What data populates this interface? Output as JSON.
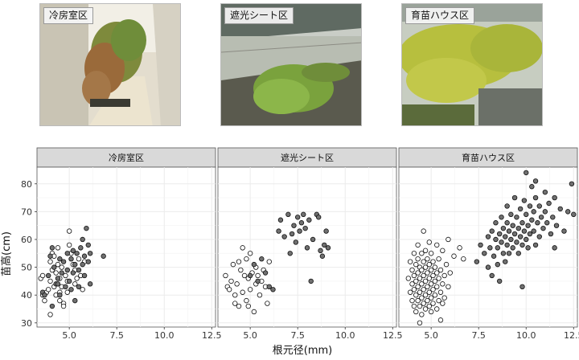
{
  "photos": [
    {
      "label": "冷房室区"
    },
    {
      "label": "遮光シート区"
    },
    {
      "label": "育苗ハウス区"
    }
  ],
  "colors": {
    "strip_bg": "#d9d9d9",
    "strip_border": "#555555",
    "panel_bg": "#ffffff",
    "grid": "#ebebeb",
    "open_point_fill": "#ffffff",
    "filled_point_fill": "#707070",
    "point_stroke": "#111111"
  },
  "chart_data": {
    "type": "scatter",
    "title": "",
    "xlabel": "根元径(mm)",
    "ylabel": "苗高(cm)",
    "xlim": [
      3.3,
      12.7
    ],
    "ylim": [
      28.5,
      86
    ],
    "xticks": [
      "5.0",
      "7.5",
      "10.0",
      "12.5"
    ],
    "xtick_values": [
      5.0,
      7.5,
      10.0,
      12.5
    ],
    "yticks": [
      "30",
      "40",
      "50",
      "60",
      "70",
      "80"
    ],
    "ytick_values": [
      30,
      40,
      50,
      60,
      70,
      80
    ],
    "grid": true,
    "panels": [
      {
        "title": "冷房室区",
        "open": [
          [
            3.5,
            46
          ],
          [
            3.6,
            47
          ],
          [
            3.6,
            40
          ],
          [
            3.7,
            38
          ],
          [
            3.8,
            41
          ],
          [
            3.9,
            42
          ],
          [
            4.0,
            45
          ],
          [
            4.0,
            52
          ],
          [
            4.1,
            49
          ],
          [
            4.1,
            55
          ],
          [
            4.2,
            54
          ],
          [
            4.2,
            43
          ],
          [
            4.3,
            48
          ],
          [
            4.3,
            40
          ],
          [
            4.4,
            51
          ],
          [
            4.4,
            57
          ],
          [
            4.5,
            46
          ],
          [
            4.5,
            38
          ],
          [
            4.6,
            50
          ],
          [
            4.6,
            43
          ],
          [
            4.7,
            37
          ],
          [
            4.7,
            36
          ],
          [
            4.8,
            47
          ],
          [
            4.9,
            45
          ],
          [
            4.9,
            41
          ],
          [
            5.0,
            63
          ],
          [
            5.0,
            58
          ],
          [
            5.1,
            55
          ],
          [
            5.2,
            51
          ],
          [
            5.3,
            44
          ],
          [
            5.3,
            49
          ],
          [
            5.4,
            46
          ],
          [
            5.5,
            53
          ],
          [
            5.6,
            47
          ],
          [
            5.7,
            42
          ],
          [
            4.0,
            33
          ],
          [
            4.5,
            41
          ],
          [
            5.8,
            52
          ]
        ],
        "filled": [
          [
            3.6,
            41
          ],
          [
            3.7,
            40
          ],
          [
            3.9,
            47
          ],
          [
            4.0,
            54
          ],
          [
            4.1,
            57
          ],
          [
            4.1,
            36
          ],
          [
            4.2,
            50
          ],
          [
            4.3,
            44
          ],
          [
            4.4,
            46
          ],
          [
            4.5,
            53
          ],
          [
            4.5,
            40
          ],
          [
            4.6,
            48
          ],
          [
            4.7,
            52
          ],
          [
            4.8,
            43
          ],
          [
            4.9,
            55
          ],
          [
            4.9,
            49
          ],
          [
            5.0,
            45
          ],
          [
            5.1,
            53
          ],
          [
            5.1,
            42
          ],
          [
            5.2,
            56
          ],
          [
            5.2,
            48
          ],
          [
            5.3,
            51
          ],
          [
            5.4,
            55
          ],
          [
            5.5,
            49
          ],
          [
            5.5,
            43
          ],
          [
            5.6,
            57
          ],
          [
            5.7,
            51
          ],
          [
            5.8,
            54
          ],
          [
            5.8,
            47
          ],
          [
            5.9,
            64
          ],
          [
            6.0,
            58
          ],
          [
            6.0,
            52
          ],
          [
            6.1,
            44
          ],
          [
            6.1,
            55
          ],
          [
            6.8,
            54
          ],
          [
            5.3,
            38
          ],
          [
            4.4,
            44
          ],
          [
            5.7,
            60
          ]
        ]
      },
      {
        "title": "遮光シート区",
        "open": [
          [
            3.7,
            47
          ],
          [
            3.8,
            43
          ],
          [
            3.9,
            42
          ],
          [
            4.0,
            45
          ],
          [
            4.1,
            51
          ],
          [
            4.2,
            37
          ],
          [
            4.3,
            44
          ],
          [
            4.4,
            52
          ],
          [
            4.4,
            36
          ],
          [
            4.5,
            49
          ],
          [
            4.6,
            57
          ],
          [
            4.6,
            41
          ],
          [
            4.7,
            47
          ],
          [
            4.8,
            53
          ],
          [
            4.8,
            38
          ],
          [
            4.9,
            46
          ],
          [
            5.0,
            55
          ],
          [
            5.0,
            42
          ],
          [
            5.1,
            48
          ],
          [
            5.2,
            34
          ],
          [
            5.3,
            50
          ],
          [
            5.3,
            44
          ],
          [
            5.4,
            47
          ],
          [
            5.5,
            40
          ],
          [
            5.6,
            45
          ],
          [
            5.7,
            49
          ],
          [
            5.8,
            43
          ],
          [
            5.9,
            37
          ],
          [
            6.0,
            52
          ],
          [
            4.2,
            40
          ],
          [
            4.9,
            36
          ]
        ],
        "filled": [
          [
            5.0,
            47
          ],
          [
            5.2,
            51
          ],
          [
            5.4,
            45
          ],
          [
            5.6,
            53
          ],
          [
            5.8,
            48
          ],
          [
            6.0,
            43
          ],
          [
            6.2,
            42
          ],
          [
            6.5,
            63
          ],
          [
            6.6,
            67
          ],
          [
            6.8,
            61
          ],
          [
            7.0,
            69
          ],
          [
            7.1,
            55
          ],
          [
            7.2,
            62
          ],
          [
            7.3,
            65
          ],
          [
            7.4,
            59
          ],
          [
            7.5,
            68
          ],
          [
            7.6,
            63
          ],
          [
            7.7,
            66
          ],
          [
            7.8,
            69
          ],
          [
            7.9,
            64
          ],
          [
            8.0,
            57
          ],
          [
            8.1,
            67
          ],
          [
            8.2,
            45
          ],
          [
            8.3,
            60
          ],
          [
            8.5,
            69
          ],
          [
            8.6,
            68
          ],
          [
            8.7,
            56
          ],
          [
            8.8,
            54
          ],
          [
            8.9,
            58
          ],
          [
            9.0,
            63
          ],
          [
            9.1,
            57
          ]
        ]
      },
      {
        "title": "育苗ハウス区",
        "open": [
          [
            3.8,
            46
          ],
          [
            3.9,
            41
          ],
          [
            3.9,
            52
          ],
          [
            4.0,
            38
          ],
          [
            4.0,
            44
          ],
          [
            4.0,
            49
          ],
          [
            4.1,
            36
          ],
          [
            4.1,
            42
          ],
          [
            4.1,
            47
          ],
          [
            4.1,
            55
          ],
          [
            4.2,
            34
          ],
          [
            4.2,
            40
          ],
          [
            4.2,
            45
          ],
          [
            4.2,
            51
          ],
          [
            4.3,
            38
          ],
          [
            4.3,
            43
          ],
          [
            4.3,
            48
          ],
          [
            4.3,
            53
          ],
          [
            4.3,
            58
          ],
          [
            4.4,
            36
          ],
          [
            4.4,
            41
          ],
          [
            4.4,
            46
          ],
          [
            4.4,
            50
          ],
          [
            4.5,
            33
          ],
          [
            4.5,
            39
          ],
          [
            4.5,
            44
          ],
          [
            4.5,
            49
          ],
          [
            4.5,
            55
          ],
          [
            4.6,
            37
          ],
          [
            4.6,
            42
          ],
          [
            4.6,
            47
          ],
          [
            4.6,
            52
          ],
          [
            4.6,
            63
          ],
          [
            4.7,
            35
          ],
          [
            4.7,
            40
          ],
          [
            4.7,
            45
          ],
          [
            4.7,
            50
          ],
          [
            4.7,
            56
          ],
          [
            4.8,
            38
          ],
          [
            4.8,
            43
          ],
          [
            4.8,
            48
          ],
          [
            4.8,
            53
          ],
          [
            4.9,
            36
          ],
          [
            4.9,
            41
          ],
          [
            4.9,
            46
          ],
          [
            4.9,
            51
          ],
          [
            4.9,
            59
          ],
          [
            5.0,
            34
          ],
          [
            5.0,
            39
          ],
          [
            5.0,
            44
          ],
          [
            5.0,
            49
          ],
          [
            5.0,
            55
          ],
          [
            5.1,
            37
          ],
          [
            5.1,
            42
          ],
          [
            5.1,
            47
          ],
          [
            5.1,
            52
          ],
          [
            5.2,
            40
          ],
          [
            5.2,
            45
          ],
          [
            5.2,
            50
          ],
          [
            5.3,
            35
          ],
          [
            5.3,
            43
          ],
          [
            5.3,
            48
          ],
          [
            5.3,
            58
          ],
          [
            5.4,
            38
          ],
          [
            5.4,
            46
          ],
          [
            5.4,
            53
          ],
          [
            5.5,
            41
          ],
          [
            5.5,
            49
          ],
          [
            5.5,
            31
          ],
          [
            5.6,
            44
          ],
          [
            5.6,
            56
          ],
          [
            5.7,
            39
          ],
          [
            5.7,
            47
          ],
          [
            5.8,
            51
          ],
          [
            5.9,
            43
          ],
          [
            5.9,
            60
          ],
          [
            6.0,
            48
          ],
          [
            6.2,
            54
          ],
          [
            6.5,
            57
          ],
          [
            6.7,
            53
          ],
          [
            4.4,
            30
          ],
          [
            5.6,
            37
          ]
        ],
        "filled": [
          [
            7.4,
            52
          ],
          [
            7.6,
            58
          ],
          [
            7.8,
            55
          ],
          [
            8.0,
            61
          ],
          [
            8.0,
            50
          ],
          [
            8.1,
            57
          ],
          [
            8.2,
            63
          ],
          [
            8.2,
            47
          ],
          [
            8.3,
            54
          ],
          [
            8.4,
            60
          ],
          [
            8.4,
            66
          ],
          [
            8.5,
            51
          ],
          [
            8.5,
            57
          ],
          [
            8.6,
            62
          ],
          [
            8.6,
            45
          ],
          [
            8.7,
            59
          ],
          [
            8.7,
            68
          ],
          [
            8.8,
            55
          ],
          [
            8.8,
            64
          ],
          [
            8.9,
            52
          ],
          [
            8.9,
            61
          ],
          [
            9.0,
            58
          ],
          [
            9.0,
            66
          ],
          [
            9.0,
            72
          ],
          [
            9.1,
            55
          ],
          [
            9.1,
            63
          ],
          [
            9.2,
            60
          ],
          [
            9.2,
            69
          ],
          [
            9.3,
            57
          ],
          [
            9.3,
            65
          ],
          [
            9.4,
            62
          ],
          [
            9.4,
            75
          ],
          [
            9.5,
            59
          ],
          [
            9.5,
            68
          ],
          [
            9.6,
            64
          ],
          [
            9.6,
            55
          ],
          [
            9.7,
            61
          ],
          [
            9.7,
            71
          ],
          [
            9.8,
            66
          ],
          [
            9.8,
            58
          ],
          [
            9.9,
            63
          ],
          [
            9.9,
            74
          ],
          [
            10.0,
            60
          ],
          [
            10.0,
            69
          ],
          [
            10.1,
            65
          ],
          [
            10.1,
            57
          ],
          [
            10.2,
            72
          ],
          [
            10.2,
            62
          ],
          [
            10.3,
            67
          ],
          [
            10.3,
            79
          ],
          [
            10.4,
            63
          ],
          [
            10.4,
            70
          ],
          [
            10.5,
            58
          ],
          [
            10.5,
            75
          ],
          [
            10.6,
            66
          ],
          [
            10.7,
            72
          ],
          [
            10.7,
            61
          ],
          [
            10.8,
            68
          ],
          [
            10.9,
            64
          ],
          [
            11.0,
            77
          ],
          [
            11.0,
            70
          ],
          [
            11.1,
            66
          ],
          [
            11.2,
            73
          ],
          [
            11.3,
            62
          ],
          [
            11.4,
            68
          ],
          [
            11.5,
            75
          ],
          [
            11.6,
            65
          ],
          [
            11.8,
            71
          ],
          [
            12.0,
            63
          ],
          [
            12.2,
            70
          ],
          [
            12.4,
            80
          ],
          [
            10.0,
            84
          ],
          [
            10.5,
            81
          ],
          [
            11.5,
            57
          ],
          [
            12.5,
            69
          ],
          [
            9.8,
            43
          ]
        ]
      }
    ]
  }
}
